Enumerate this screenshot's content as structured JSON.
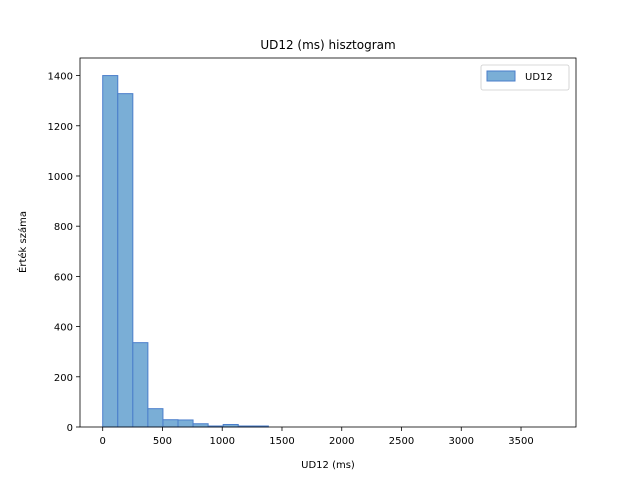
{
  "chart_data": {
    "type": "bar",
    "subtype": "histogram",
    "title": "UD12 (ms) hisztogram",
    "xlabel": "UD12 (ms)",
    "ylabel": "Érték száma",
    "xlim": [
      -190,
      3960
    ],
    "ylim": [
      0,
      1470
    ],
    "xticks": [
      0,
      500,
      1000,
      1500,
      2000,
      2500,
      3000,
      3500
    ],
    "yticks": [
      0,
      200,
      400,
      600,
      800,
      1000,
      1200,
      1400
    ],
    "bin_start": 0,
    "bin_width": 126,
    "series": [
      {
        "name": "UD12",
        "color": "#7aaed6",
        "edge_color": "#4a7ecb",
        "values": [
          1400,
          1328,
          336,
          73,
          29,
          28,
          13,
          4,
          10,
          4,
          4,
          0,
          0,
          0,
          0,
          0,
          0,
          0,
          0,
          0,
          0,
          0,
          0,
          0,
          0,
          0,
          0,
          0,
          0,
          0
        ]
      }
    ],
    "legend_position": "top-right",
    "grid": false
  }
}
